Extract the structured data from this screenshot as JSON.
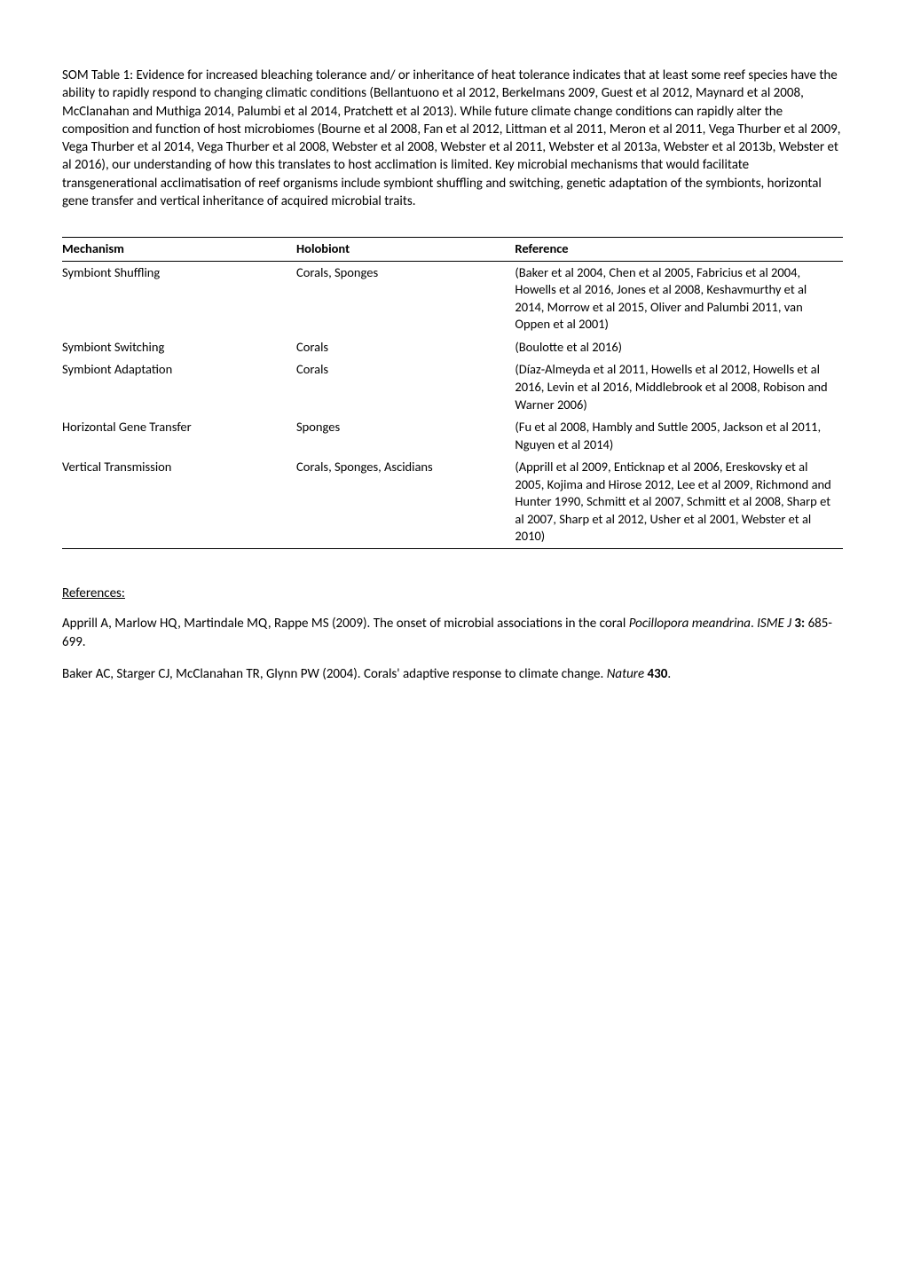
{
  "intro": "SOM Table 1: Evidence for increased bleaching tolerance and/ or inheritance of heat tolerance indicates that at least some reef species have the ability to rapidly respond to changing climatic conditions (Bellantuono et al 2012, Berkelmans 2009, Guest et al 2012, Maynard et al 2008, McClanahan and Muthiga 2014, Palumbi et al 2014, Pratchett et al 2013). While future climate change conditions can rapidly alter the composition and function of host microbiomes (Bourne et al 2008, Fan et al 2012, Littman et al 2011, Meron et al 2011, Vega Thurber et al 2009, Vega Thurber et al 2014, Vega Thurber et al 2008, Webster et al 2008, Webster et al 2011, Webster et al 2013a, Webster et al 2013b, Webster et al 2016), our understanding of how this translates to host acclimation is limited.  Key microbial mechanisms that would facilitate transgenerational acclimatisation of reef organisms include symbiont shuffling and switching, genetic adaptation of the symbionts, horizontal gene transfer and vertical inheritance of acquired microbial traits.",
  "table": {
    "headers": {
      "mechanism": "Mechanism",
      "holobiont": "Holobiont",
      "reference": "Reference"
    },
    "rows": [
      {
        "mechanism": "Symbiont Shuffling",
        "holobiont": "Corals, Sponges",
        "reference": "(Baker et al 2004, Chen et al 2005, Fabricius et al 2004, Howells et al 2016, Jones et al 2008, Keshavmurthy et al 2014, Morrow et al 2015, Oliver and Palumbi 2011, van Oppen et al 2001)"
      },
      {
        "mechanism": "Symbiont Switching",
        "holobiont": "Corals",
        "reference": "(Boulotte et al 2016)"
      },
      {
        "mechanism": "Symbiont Adaptation",
        "holobiont": "Corals",
        "reference": "(Díaz-Almeyda et al 2011, Howells et al 2012, Howells et al 2016, Levin et al 2016, Middlebrook et al 2008, Robison and Warner 2006)"
      },
      {
        "mechanism": "Horizontal Gene Transfer",
        "holobiont": "Sponges",
        "reference": "(Fu et al 2008, Hambly and Suttle 2005, Jackson et al 2011, Nguyen et al 2014)"
      },
      {
        "mechanism": "Vertical Transmission",
        "holobiont": "Corals, Sponges, Ascidians",
        "reference": "(Apprill et al 2009, Enticknap et al 2006, Ereskovsky et al 2005, Kojima and Hirose 2012, Lee et al 2009, Richmond and Hunter 1990, Schmitt et al 2007, Schmitt et al 2008, Sharp et al 2007, Sharp et al 2012, Usher et al 2001, Webster et al 2010)"
      }
    ]
  },
  "references": {
    "heading": "References:",
    "entries": [
      {
        "pre": "Apprill A, Marlow HQ, Martindale MQ, Rappe MS (2009). The onset of microbial associations in the coral ",
        "emph": "Pocillopora meandrina",
        "mid": ". ",
        "journal": "ISME J",
        "vol": " 3: ",
        "post": "685-699."
      },
      {
        "pre": "Baker AC, Starger CJ, McClanahan TR, Glynn PW (2004). Corals' adaptive response to climate change. ",
        "emph": "",
        "mid": "",
        "journal": "Nature",
        "vol": " 430",
        "post": "."
      }
    ]
  }
}
